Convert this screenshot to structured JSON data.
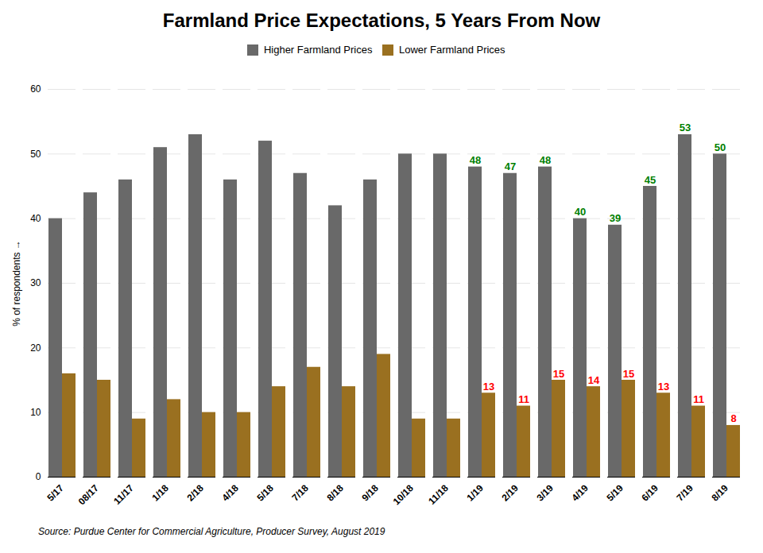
{
  "chart_data": {
    "type": "bar",
    "title": "Farmland Price Expectations, 5 Years From Now",
    "ylabel": "% of respondents",
    "source": "Source: Purdue Center for Commercial Agriculture, Producer Survey, August 2019",
    "categories": [
      "5/17",
      "08/17",
      "11/17",
      "1/18",
      "2/18",
      "4/18",
      "5/18",
      "7/18",
      "8/18",
      "9/18",
      "10/18",
      "11/18",
      "1/19",
      "2/19",
      "3/19",
      "4/19",
      "5/19",
      "6/19",
      "7/19",
      "8/19"
    ],
    "series": [
      {
        "name": "Higher Farmland Prices",
        "color": "#696969",
        "values": [
          40,
          44,
          46,
          51,
          53,
          46,
          52,
          47,
          42,
          46,
          50,
          50,
          48,
          47,
          48,
          40,
          39,
          45,
          53,
          50
        ]
      },
      {
        "name": "Lower Farmland Prices",
        "color": "#9A7020",
        "values": [
          16,
          15,
          9,
          12,
          10,
          10,
          14,
          17,
          14,
          19,
          9,
          9,
          13,
          11,
          15,
          14,
          15,
          13,
          11,
          8
        ]
      }
    ],
    "ylim": [
      0,
      60
    ],
    "yticks": [
      0,
      10,
      20,
      30,
      40,
      50,
      60
    ],
    "grid": true,
    "legend": "top",
    "annotations": [
      {
        "x": "1/19",
        "series": "Higher Farmland Prices",
        "text": "48",
        "color": "#008000"
      },
      {
        "x": "2/19",
        "series": "Higher Farmland Prices",
        "text": "47",
        "color": "#008000"
      },
      {
        "x": "3/19",
        "series": "Higher Farmland Prices",
        "text": "48",
        "color": "#008000"
      },
      {
        "x": "4/19",
        "series": "Higher Farmland Prices",
        "text": "40",
        "color": "#008000"
      },
      {
        "x": "5/19",
        "series": "Higher Farmland Prices",
        "text": "39",
        "color": "#008000"
      },
      {
        "x": "6/19",
        "series": "Higher Farmland Prices",
        "text": "45",
        "color": "#008000"
      },
      {
        "x": "7/19",
        "series": "Higher Farmland Prices",
        "text": "53",
        "color": "#008000"
      },
      {
        "x": "8/19",
        "series": "Higher Farmland Prices",
        "text": "50",
        "color": "#008000"
      },
      {
        "x": "1/19",
        "series": "Lower Farmland Prices",
        "text": "13",
        "color": "#FF0000"
      },
      {
        "x": "2/19",
        "series": "Lower Farmland Prices",
        "text": "11",
        "color": "#FF0000"
      },
      {
        "x": "3/19",
        "series": "Lower Farmland Prices",
        "text": "15",
        "color": "#FF0000"
      },
      {
        "x": "4/19",
        "series": "Lower Farmland Prices",
        "text": "14",
        "color": "#FF0000"
      },
      {
        "x": "5/19",
        "series": "Lower Farmland Prices",
        "text": "15",
        "color": "#FF0000"
      },
      {
        "x": "6/19",
        "series": "Lower Farmland Prices",
        "text": "13",
        "color": "#FF0000"
      },
      {
        "x": "7/19",
        "series": "Lower Farmland Prices",
        "text": "11",
        "color": "#FF0000"
      },
      {
        "x": "8/19",
        "series": "Lower Farmland Prices",
        "text": "8",
        "color": "#FF0000"
      }
    ]
  }
}
